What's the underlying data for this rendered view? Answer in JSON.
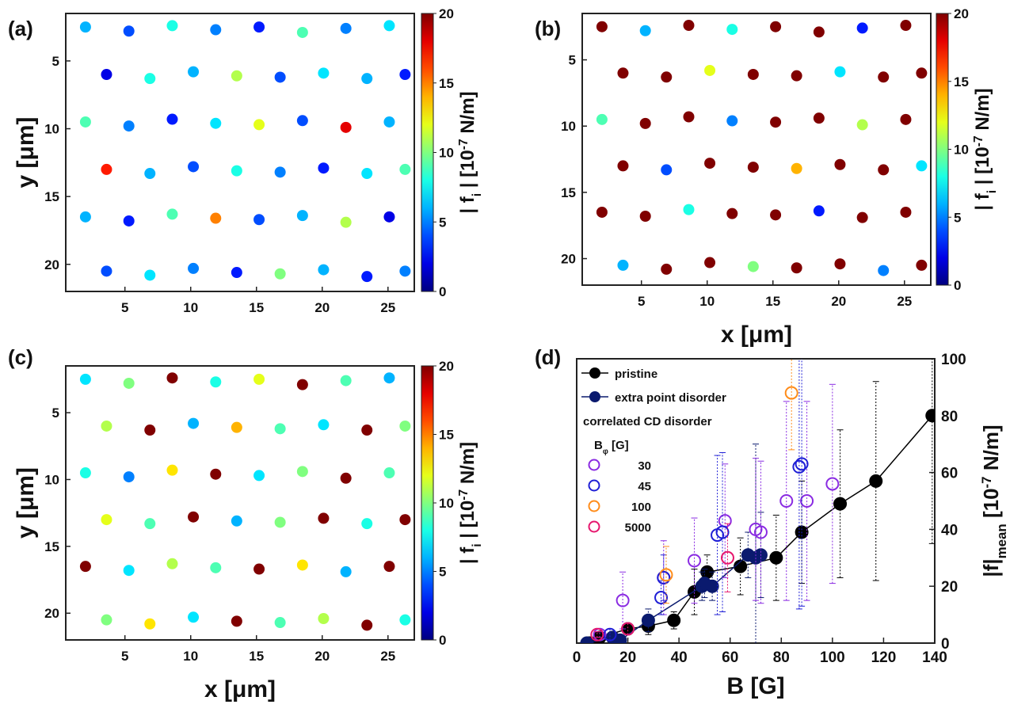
{
  "chart_data": [
    {
      "type": "scatter",
      "panel_label": "(a)",
      "ylabel": "y [μm]",
      "colorbar_label": [
        {
          "text": "| f"
        },
        {
          "text": "i",
          "sub": true
        },
        {
          "text": " | [10"
        },
        {
          "text": "-7",
          "sup": true
        },
        {
          "text": " N/m]"
        }
      ],
      "colormap": "jet",
      "clim": [
        0,
        20
      ],
      "cticks": [
        0,
        5,
        10,
        15,
        20
      ],
      "xlim": [
        0.5,
        27
      ],
      "xticks": [
        5,
        10,
        15,
        20,
        25
      ],
      "ylim": [
        1.5,
        22
      ],
      "yticks": [
        5,
        10,
        15,
        20
      ],
      "yreverse": true,
      "x": [
        2,
        5.3,
        8.6,
        11.9,
        15.2,
        18.5,
        21.8,
        25.1,
        3.6,
        6.9,
        10.2,
        13.5,
        16.8,
        20.1,
        23.4,
        26.3,
        2,
        5.3,
        8.6,
        11.9,
        15.2,
        18.5,
        21.8,
        25.1,
        3.6,
        6.9,
        10.2,
        13.5,
        16.8,
        20.1,
        23.4,
        26.3,
        2,
        5.3,
        8.6,
        11.9,
        15.2,
        18.5,
        21.8,
        25.1,
        3.6,
        6.9,
        10.2,
        13.5,
        16.8,
        20.1,
        23.4,
        26.3
      ],
      "y": [
        2.5,
        2.8,
        2.4,
        2.7,
        2.5,
        2.9,
        2.6,
        2.4,
        6,
        6.3,
        5.8,
        6.1,
        6.2,
        5.9,
        6.3,
        6,
        9.5,
        9.8,
        9.3,
        9.6,
        9.7,
        9.4,
        9.9,
        9.5,
        13,
        13.3,
        12.8,
        13.1,
        13.2,
        12.9,
        13.3,
        13,
        16.5,
        16.8,
        16.3,
        16.6,
        16.7,
        16.4,
        16.9,
        16.5,
        20.5,
        20.8,
        20.3,
        20.6,
        20.7,
        20.4,
        20.9,
        20.5
      ],
      "c": [
        6,
        4,
        8,
        5,
        3,
        9,
        5,
        7,
        2,
        8,
        6,
        11,
        4,
        7,
        6,
        3,
        9,
        5,
        3,
        7,
        12,
        4,
        18,
        6,
        17,
        6,
        4,
        8,
        5,
        3,
        7,
        9,
        6,
        3,
        9,
        15,
        4,
        6,
        11,
        2,
        4,
        7,
        5,
        3,
        10,
        6,
        3,
        5
      ]
    },
    {
      "type": "scatter",
      "panel_label": "(b)",
      "xlabel": "x [μm]",
      "colorbar_label": [
        {
          "text": "| f"
        },
        {
          "text": "i",
          "sub": true
        },
        {
          "text": " | [10"
        },
        {
          "text": "-7",
          "sup": true
        },
        {
          "text": " N/m]"
        }
      ],
      "colormap": "jet",
      "clim": [
        0,
        20
      ],
      "cticks": [
        0,
        5,
        10,
        15,
        20
      ],
      "xlim": [
        0.5,
        27
      ],
      "xticks": [
        5,
        10,
        15,
        20,
        25
      ],
      "ylim": [
        1.5,
        22
      ],
      "yticks": [
        5,
        10,
        15,
        20
      ],
      "yreverse": true,
      "x": [
        2,
        5.3,
        8.6,
        11.9,
        15.2,
        18.5,
        21.8,
        25.1,
        3.6,
        6.9,
        10.2,
        13.5,
        16.8,
        20.1,
        23.4,
        26.3,
        2,
        5.3,
        8.6,
        11.9,
        15.2,
        18.5,
        21.8,
        25.1,
        3.6,
        6.9,
        10.2,
        13.5,
        16.8,
        20.1,
        23.4,
        26.3,
        2,
        5.3,
        8.6,
        11.9,
        15.2,
        18.5,
        21.8,
        25.1,
        3.6,
        6.9,
        10.2,
        13.5,
        16.8,
        20.1,
        23.4,
        26.3
      ],
      "y": [
        2.5,
        2.8,
        2.4,
        2.7,
        2.5,
        2.9,
        2.6,
        2.4,
        6,
        6.3,
        5.8,
        6.1,
        6.2,
        5.9,
        6.3,
        6,
        9.5,
        9.8,
        9.3,
        9.6,
        9.7,
        9.4,
        9.9,
        9.5,
        13,
        13.3,
        12.8,
        13.1,
        13.2,
        12.9,
        13.3,
        13,
        16.5,
        16.8,
        16.3,
        16.6,
        16.7,
        16.4,
        16.9,
        16.5,
        20.5,
        20.8,
        20.3,
        20.6,
        20.7,
        20.4,
        20.9,
        20.5
      ],
      "c": [
        20,
        6,
        20,
        8,
        20,
        20,
        3,
        20,
        20,
        20,
        12,
        20,
        20,
        7,
        20,
        20,
        9,
        20,
        20,
        5,
        20,
        20,
        11,
        20,
        20,
        4,
        20,
        20,
        14,
        20,
        20,
        7,
        20,
        20,
        8,
        20,
        20,
        3,
        20,
        20,
        6,
        20,
        20,
        10,
        20,
        20,
        5,
        20
      ]
    },
    {
      "type": "scatter",
      "panel_label": "(c)",
      "xlabel": "x [μm]",
      "ylabel": "y [μm]",
      "colorbar_label": [
        {
          "text": "| f"
        },
        {
          "text": "i",
          "sub": true
        },
        {
          "text": " | [10"
        },
        {
          "text": "-7",
          "sup": true
        },
        {
          "text": " N/m]"
        }
      ],
      "colormap": "jet",
      "clim": [
        0,
        20
      ],
      "cticks": [
        0,
        5,
        10,
        15,
        20
      ],
      "xlim": [
        0.5,
        27
      ],
      "xticks": [
        5,
        10,
        15,
        20,
        25
      ],
      "ylim": [
        1.5,
        22
      ],
      "yticks": [
        5,
        10,
        15,
        20
      ],
      "yreverse": true,
      "x": [
        2,
        5.3,
        8.6,
        11.9,
        15.2,
        18.5,
        21.8,
        25.1,
        3.6,
        6.9,
        10.2,
        13.5,
        16.8,
        20.1,
        23.4,
        26.3,
        2,
        5.3,
        8.6,
        11.9,
        15.2,
        18.5,
        21.8,
        25.1,
        3.6,
        6.9,
        10.2,
        13.5,
        16.8,
        20.1,
        23.4,
        26.3,
        2,
        5.3,
        8.6,
        11.9,
        15.2,
        18.5,
        21.8,
        25.1,
        3.6,
        6.9,
        10.2,
        13.5,
        16.8,
        20.1,
        23.4,
        26.3
      ],
      "y": [
        2.5,
        2.8,
        2.4,
        2.7,
        2.5,
        2.9,
        2.6,
        2.4,
        6,
        6.3,
        5.8,
        6.1,
        6.2,
        5.9,
        6.3,
        6,
        9.5,
        9.8,
        9.3,
        9.6,
        9.7,
        9.4,
        9.9,
        9.5,
        13,
        13.3,
        12.8,
        13.1,
        13.2,
        12.9,
        13.3,
        13,
        16.5,
        16.8,
        16.3,
        16.6,
        16.7,
        16.4,
        16.9,
        16.5,
        20.5,
        20.8,
        20.3,
        20.6,
        20.7,
        20.4,
        20.9,
        20.5
      ],
      "c": [
        7,
        10,
        20,
        8,
        12,
        20,
        9,
        6,
        11,
        20,
        6,
        14,
        9,
        7,
        20,
        10,
        8,
        5,
        13,
        20,
        7,
        10,
        20,
        9,
        12,
        9,
        20,
        6,
        10,
        20,
        8,
        20,
        20,
        7,
        11,
        9,
        20,
        13,
        6,
        20,
        10,
        13,
        7,
        20,
        9,
        11,
        20,
        8
      ]
    },
    {
      "type": "errorbar",
      "panel_label": "(d)",
      "xlabel": "B [G]",
      "ylabel": [
        {
          "text": "|f|"
        },
        {
          "text": "mean",
          "sub": true
        },
        {
          "text": "  [10"
        },
        {
          "text": "-7",
          "sup": true
        },
        {
          "text": " N/m]"
        }
      ],
      "yaxis_side": "right",
      "xlim": [
        0,
        140
      ],
      "xticks": [
        0,
        20,
        40,
        60,
        80,
        100,
        120,
        140
      ],
      "ylim": [
        0,
        100
      ],
      "yticks": [
        0,
        20,
        40,
        60,
        80,
        100
      ],
      "legend_note": "correlated CD disorder",
      "legend_title": [
        {
          "text": "B"
        },
        {
          "text": "φ",
          "sub": true
        },
        {
          "text": " [G]"
        }
      ],
      "series": [
        {
          "name": "pristine",
          "color": "#000000",
          "marker": "filled",
          "line": true,
          "x": [
            5,
            9,
            20,
            28,
            38,
            46,
            51,
            64,
            78,
            88,
            103,
            117,
            139
          ],
          "values": [
            0,
            2,
            5,
            6,
            8,
            18,
            25,
            27,
            30,
            39,
            49,
            57,
            80
          ],
          "errors": [
            1,
            1,
            2,
            3,
            3,
            8,
            6,
            10,
            15,
            18,
            26,
            35,
            45
          ]
        },
        {
          "name": "extra point disorder",
          "color": "#0a1a6e",
          "marker": "filled",
          "line": true,
          "x": [
            4,
            14,
            17,
            28,
            49,
            50,
            53,
            67,
            70,
            72
          ],
          "values": [
            0,
            2,
            1,
            8,
            20,
            21,
            20,
            31,
            30,
            31
          ],
          "errors": [
            1,
            2,
            1,
            4,
            5,
            5,
            5,
            8,
            40,
            15
          ]
        },
        {
          "name": "30",
          "color": "#8a2be2",
          "marker": "open",
          "line": false,
          "x": [
            9,
            18,
            34,
            46,
            58,
            70,
            72,
            82,
            90,
            100
          ],
          "values": [
            3,
            15,
            23,
            29,
            43,
            40,
            39,
            50,
            50,
            56
          ],
          "errors": [
            1,
            10,
            13,
            15,
            20,
            25,
            25,
            35,
            35,
            35
          ]
        },
        {
          "name": "45",
          "color": "#1f1fd6",
          "marker": "open",
          "line": false,
          "x": [
            13,
            33,
            34,
            55,
            57,
            87,
            88
          ],
          "values": [
            3,
            16,
            23,
            38,
            39,
            62,
            63
          ],
          "errors": [
            2,
            6,
            8,
            28,
            28,
            50,
            50
          ]
        },
        {
          "name": "100",
          "color": "#ff8c1a",
          "marker": "open",
          "line": false,
          "x": [
            35,
            84
          ],
          "values": [
            24,
            88
          ],
          "errors": [
            10,
            20
          ]
        },
        {
          "name": "5000",
          "color": "#e6176e",
          "marker": "open",
          "line": false,
          "x": [
            8,
            20,
            59
          ],
          "values": [
            3,
            5,
            30
          ],
          "errors": [
            1,
            2,
            12
          ]
        }
      ]
    }
  ]
}
